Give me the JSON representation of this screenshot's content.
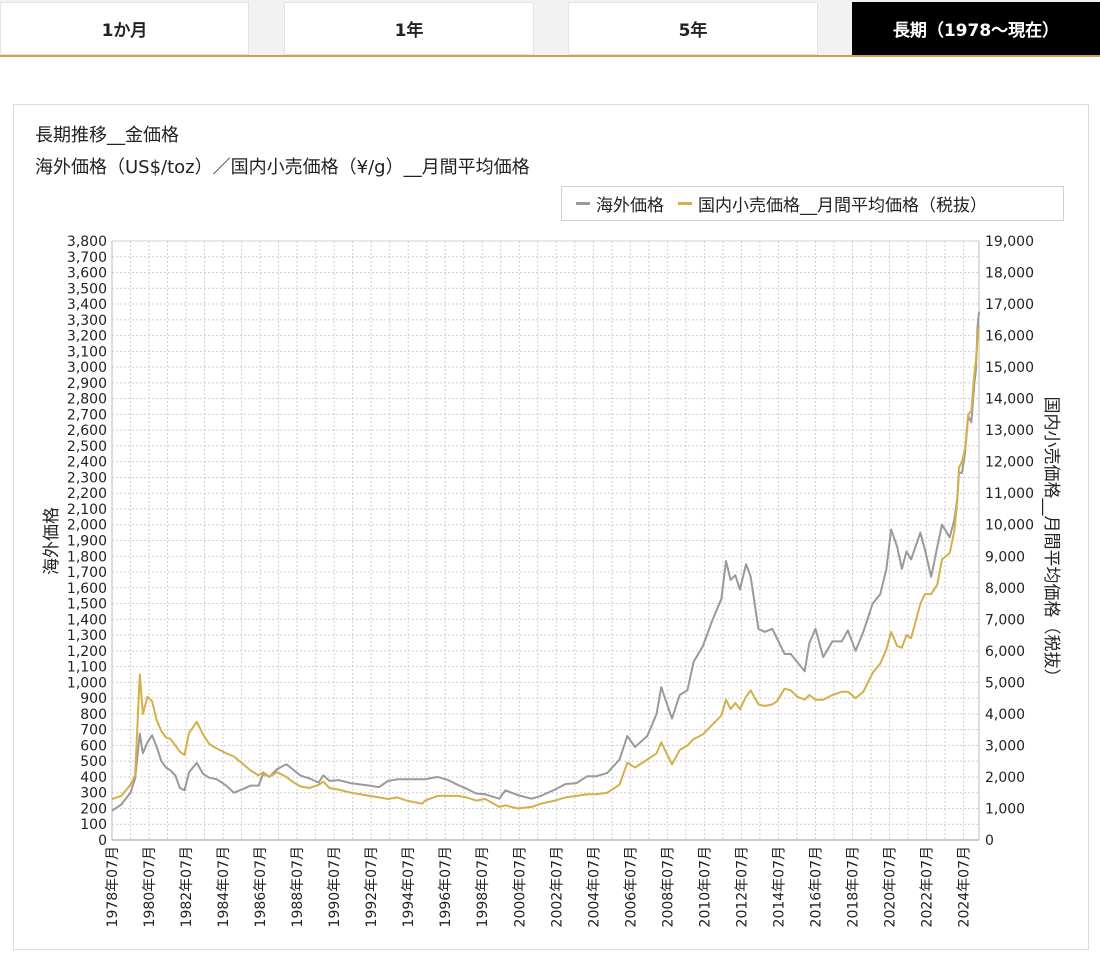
{
  "tabs": [
    {
      "label": "1か月",
      "active": false
    },
    {
      "label": "1年",
      "active": false
    },
    {
      "label": "5年",
      "active": false
    },
    {
      "label": "長期（1978～現在）",
      "active": true
    }
  ],
  "colors": {
    "overseas": "#9a9a9a",
    "domestic": "#d4b04a",
    "accent": "#c9a24a"
  },
  "chart_data": {
    "type": "line",
    "title": "長期推移__金価格",
    "subtitle": "海外価格（US$/toz）／国内小売価格（¥/g）__月間平均価格",
    "ylabel_left": "海外価格",
    "ylabel_right": "国内小売価格__月間平均価格（税抜）",
    "ylim_left": [
      0,
      3800
    ],
    "ylim_right": [
      0,
      19000
    ],
    "y_ticks_left": [
      "0",
      "100",
      "200",
      "300",
      "400",
      "500",
      "600",
      "700",
      "800",
      "900",
      "1,000",
      "1,100",
      "1,200",
      "1,300",
      "1,400",
      "1,500",
      "1,600",
      "1,700",
      "1,800",
      "1,900",
      "2,000",
      "2,100",
      "2,200",
      "2,300",
      "2,400",
      "2,500",
      "2,600",
      "2,700",
      "2,800",
      "2,900",
      "3,000",
      "3,100",
      "3,200",
      "3,300",
      "3,400",
      "3,500",
      "3,600",
      "3,700",
      "3,800"
    ],
    "y_ticks_right": [
      "0",
      "1,000",
      "2,000",
      "3,000",
      "4,000",
      "5,000",
      "6,000",
      "7,000",
      "8,000",
      "9,000",
      "10,000",
      "11,000",
      "12,000",
      "13,000",
      "14,000",
      "15,000",
      "16,000",
      "17,000",
      "18,000",
      "19,000"
    ],
    "x_range": [
      "1978-07",
      "2025-05"
    ],
    "x_ticks": [
      "1978年07月",
      "1980年07月",
      "1982年07月",
      "1984年07月",
      "1986年07月",
      "1988年07月",
      "1990年07月",
      "1992年07月",
      "1994年07月",
      "1996年07月",
      "1998年07月",
      "2000年07月",
      "2002年07月",
      "2004年07月",
      "2006年07月",
      "2008年07月",
      "2010年07月",
      "2012年07月",
      "2014年07月",
      "2016年07月",
      "2018年07月",
      "2020年07月",
      "2022年07月",
      "2024年07月"
    ],
    "grid": true,
    "legend_position": "top-right",
    "series": [
      {
        "name": "海外価格",
        "axis": "left",
        "points": [
          [
            "1978-07",
            185
          ],
          [
            "1979-01",
            225
          ],
          [
            "1979-07",
            300
          ],
          [
            "1979-10",
            390
          ],
          [
            "1980-01",
            675
          ],
          [
            "1980-03",
            550
          ],
          [
            "1980-06",
            620
          ],
          [
            "1980-09",
            665
          ],
          [
            "1980-12",
            590
          ],
          [
            "1981-03",
            500
          ],
          [
            "1981-06",
            460
          ],
          [
            "1981-09",
            440
          ],
          [
            "1981-12",
            410
          ],
          [
            "1982-03",
            330
          ],
          [
            "1982-06",
            315
          ],
          [
            "1982-09",
            430
          ],
          [
            "1983-02",
            490
          ],
          [
            "1983-06",
            420
          ],
          [
            "1983-10",
            395
          ],
          [
            "1984-03",
            385
          ],
          [
            "1984-09",
            345
          ],
          [
            "1985-02",
            300
          ],
          [
            "1985-07",
            320
          ],
          [
            "1986-01",
            345
          ],
          [
            "1986-06",
            345
          ],
          [
            "1986-09",
            420
          ],
          [
            "1987-01",
            400
          ],
          [
            "1987-06",
            450
          ],
          [
            "1987-12",
            480
          ],
          [
            "1988-04",
            450
          ],
          [
            "1988-09",
            410
          ],
          [
            "1989-03",
            390
          ],
          [
            "1989-09",
            365
          ],
          [
            "1989-12",
            410
          ],
          [
            "1990-04",
            375
          ],
          [
            "1990-10",
            380
          ],
          [
            "1991-06",
            360
          ],
          [
            "1992-06",
            345
          ],
          [
            "1992-12",
            335
          ],
          [
            "1993-06",
            375
          ],
          [
            "1993-12",
            385
          ],
          [
            "1994-06",
            385
          ],
          [
            "1995-06",
            385
          ],
          [
            "1996-02",
            400
          ],
          [
            "1996-09",
            380
          ],
          [
            "1997-03",
            350
          ],
          [
            "1997-09",
            325
          ],
          [
            "1998-03",
            295
          ],
          [
            "1998-09",
            290
          ],
          [
            "1999-06",
            262
          ],
          [
            "1999-10",
            315
          ],
          [
            "2000-06",
            285
          ],
          [
            "2001-03",
            262
          ],
          [
            "2001-09",
            280
          ],
          [
            "2002-06",
            320
          ],
          [
            "2003-01",
            355
          ],
          [
            "2003-08",
            360
          ],
          [
            "2004-03",
            405
          ],
          [
            "2004-09",
            405
          ],
          [
            "2005-04",
            425
          ],
          [
            "2005-12",
            510
          ],
          [
            "2006-05",
            660
          ],
          [
            "2006-10",
            590
          ],
          [
            "2007-06",
            660
          ],
          [
            "2007-12",
            800
          ],
          [
            "2008-03",
            970
          ],
          [
            "2008-10",
            770
          ],
          [
            "2009-03",
            920
          ],
          [
            "2009-08",
            950
          ],
          [
            "2009-12",
            1130
          ],
          [
            "2010-06",
            1230
          ],
          [
            "2010-12",
            1390
          ],
          [
            "2011-06",
            1530
          ],
          [
            "2011-09",
            1770
          ],
          [
            "2011-12",
            1650
          ],
          [
            "2012-03",
            1680
          ],
          [
            "2012-06",
            1590
          ],
          [
            "2012-10",
            1750
          ],
          [
            "2013-01",
            1670
          ],
          [
            "2013-06",
            1340
          ],
          [
            "2013-10",
            1320
          ],
          [
            "2014-03",
            1340
          ],
          [
            "2014-06",
            1280
          ],
          [
            "2014-11",
            1180
          ],
          [
            "2015-03",
            1180
          ],
          [
            "2015-07",
            1130
          ],
          [
            "2015-12",
            1070
          ],
          [
            "2016-03",
            1250
          ],
          [
            "2016-07",
            1340
          ],
          [
            "2016-12",
            1160
          ],
          [
            "2017-06",
            1260
          ],
          [
            "2017-12",
            1260
          ],
          [
            "2018-04",
            1330
          ],
          [
            "2018-09",
            1200
          ],
          [
            "2019-02",
            1320
          ],
          [
            "2019-08",
            1500
          ],
          [
            "2020-01",
            1560
          ],
          [
            "2020-05",
            1720
          ],
          [
            "2020-08",
            1970
          ],
          [
            "2020-12",
            1860
          ],
          [
            "2021-03",
            1720
          ],
          [
            "2021-06",
            1830
          ],
          [
            "2021-09",
            1780
          ],
          [
            "2022-03",
            1950
          ],
          [
            "2022-06",
            1840
          ],
          [
            "2022-10",
            1670
          ],
          [
            "2023-02",
            1860
          ],
          [
            "2023-05",
            2000
          ],
          [
            "2023-10",
            1920
          ],
          [
            "2024-01",
            2030
          ],
          [
            "2024-03",
            2170
          ],
          [
            "2024-04",
            2330
          ],
          [
            "2024-06",
            2330
          ],
          [
            "2024-08",
            2460
          ],
          [
            "2024-10",
            2690
          ],
          [
            "2024-12",
            2650
          ],
          [
            "2025-02",
            2900
          ],
          [
            "2025-03",
            2980
          ],
          [
            "2025-04",
            3250
          ],
          [
            "2025-05",
            3350
          ]
        ]
      },
      {
        "name": "国内小売価格__月間平均価格（税抜）",
        "axis": "right",
        "points": [
          [
            "1978-07",
            1300
          ],
          [
            "1979-01",
            1400
          ],
          [
            "1979-07",
            1750
          ],
          [
            "1979-10",
            2050
          ],
          [
            "1980-01",
            5250
          ],
          [
            "1980-03",
            4000
          ],
          [
            "1980-06",
            4550
          ],
          [
            "1980-09",
            4400
          ],
          [
            "1980-12",
            3800
          ],
          [
            "1981-03",
            3450
          ],
          [
            "1981-06",
            3250
          ],
          [
            "1981-09",
            3200
          ],
          [
            "1981-12",
            3000
          ],
          [
            "1982-03",
            2800
          ],
          [
            "1982-06",
            2700
          ],
          [
            "1982-09",
            3400
          ],
          [
            "1983-02",
            3750
          ],
          [
            "1983-06",
            3350
          ],
          [
            "1983-10",
            3050
          ],
          [
            "1984-03",
            2900
          ],
          [
            "1984-09",
            2750
          ],
          [
            "1985-02",
            2650
          ],
          [
            "1985-07",
            2450
          ],
          [
            "1986-01",
            2200
          ],
          [
            "1986-06",
            2050
          ],
          [
            "1986-09",
            2150
          ],
          [
            "1987-01",
            2000
          ],
          [
            "1987-06",
            2150
          ],
          [
            "1987-12",
            2000
          ],
          [
            "1988-04",
            1850
          ],
          [
            "1988-09",
            1700
          ],
          [
            "1989-03",
            1650
          ],
          [
            "1989-09",
            1750
          ],
          [
            "1989-12",
            1850
          ],
          [
            "1990-04",
            1650
          ],
          [
            "1990-10",
            1600
          ],
          [
            "1991-06",
            1500
          ],
          [
            "1992-06",
            1400
          ],
          [
            "1992-12",
            1350
          ],
          [
            "1993-06",
            1300
          ],
          [
            "1993-12",
            1350
          ],
          [
            "1994-06",
            1250
          ],
          [
            "1995-04",
            1150
          ],
          [
            "1995-06",
            1250
          ],
          [
            "1996-02",
            1400
          ],
          [
            "1996-09",
            1400
          ],
          [
            "1997-03",
            1400
          ],
          [
            "1997-09",
            1350
          ],
          [
            "1998-03",
            1250
          ],
          [
            "1998-09",
            1300
          ],
          [
            "1999-06",
            1050
          ],
          [
            "1999-10",
            1100
          ],
          [
            "2000-06",
            1000
          ],
          [
            "2001-03",
            1050
          ],
          [
            "2001-09",
            1150
          ],
          [
            "2002-06",
            1250
          ],
          [
            "2003-01",
            1350
          ],
          [
            "2003-08",
            1400
          ],
          [
            "2004-03",
            1450
          ],
          [
            "2004-09",
            1450
          ],
          [
            "2005-04",
            1500
          ],
          [
            "2005-12",
            1750
          ],
          [
            "2006-05",
            2450
          ],
          [
            "2006-10",
            2300
          ],
          [
            "2007-06",
            2550
          ],
          [
            "2007-12",
            2750
          ],
          [
            "2008-03",
            3100
          ],
          [
            "2008-10",
            2400
          ],
          [
            "2009-03",
            2850
          ],
          [
            "2009-08",
            3000
          ],
          [
            "2009-12",
            3200
          ],
          [
            "2010-06",
            3350
          ],
          [
            "2010-12",
            3650
          ],
          [
            "2011-06",
            3950
          ],
          [
            "2011-09",
            4450
          ],
          [
            "2011-12",
            4150
          ],
          [
            "2012-03",
            4350
          ],
          [
            "2012-06",
            4150
          ],
          [
            "2012-10",
            4550
          ],
          [
            "2013-01",
            4750
          ],
          [
            "2013-06",
            4300
          ],
          [
            "2013-10",
            4250
          ],
          [
            "2014-03",
            4300
          ],
          [
            "2014-06",
            4400
          ],
          [
            "2014-11",
            4800
          ],
          [
            "2015-03",
            4750
          ],
          [
            "2015-07",
            4550
          ],
          [
            "2015-12",
            4450
          ],
          [
            "2016-03",
            4600
          ],
          [
            "2016-07",
            4450
          ],
          [
            "2016-12",
            4450
          ],
          [
            "2017-06",
            4600
          ],
          [
            "2017-12",
            4700
          ],
          [
            "2018-04",
            4700
          ],
          [
            "2018-09",
            4500
          ],
          [
            "2019-02",
            4700
          ],
          [
            "2019-08",
            5300
          ],
          [
            "2020-01",
            5600
          ],
          [
            "2020-05",
            6050
          ],
          [
            "2020-08",
            6600
          ],
          [
            "2020-12",
            6150
          ],
          [
            "2021-03",
            6100
          ],
          [
            "2021-06",
            6500
          ],
          [
            "2021-09",
            6400
          ],
          [
            "2022-03",
            7500
          ],
          [
            "2022-06",
            7800
          ],
          [
            "2022-10",
            7800
          ],
          [
            "2023-02",
            8100
          ],
          [
            "2023-05",
            8900
          ],
          [
            "2023-10",
            9100
          ],
          [
            "2024-01",
            9800
          ],
          [
            "2024-03",
            10800
          ],
          [
            "2024-04",
            11800
          ],
          [
            "2024-06",
            12000
          ],
          [
            "2024-08",
            12400
          ],
          [
            "2024-10",
            13500
          ],
          [
            "2024-12",
            13600
          ],
          [
            "2025-02",
            14800
          ],
          [
            "2025-03",
            15200
          ],
          [
            "2025-04",
            15900
          ],
          [
            "2025-05",
            16300
          ]
        ]
      }
    ]
  }
}
